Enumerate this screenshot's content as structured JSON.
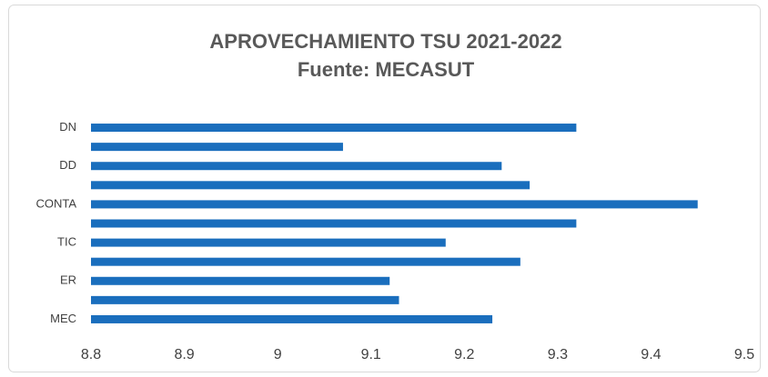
{
  "chart_data": {
    "type": "hbar",
    "title": "APROVECHAMIENTO TSU 2021-2022",
    "subtitle": "Fuente: MECASUT",
    "categories": [
      "MEC",
      null,
      "ER",
      null,
      "TIC",
      null,
      "CONTA",
      null,
      "DD",
      null,
      "DN"
    ],
    "values": [
      9.23,
      9.13,
      9.12,
      9.26,
      9.18,
      9.32,
      9.45,
      9.27,
      9.24,
      9.07,
      9.32
    ],
    "color": "#1a6ebd",
    "xlim": [
      8.8,
      9.5
    ],
    "xticks": [
      8.8,
      8.9,
      9,
      9.1,
      9.2,
      9.3,
      9.4,
      9.5
    ],
    "grid": false
  }
}
